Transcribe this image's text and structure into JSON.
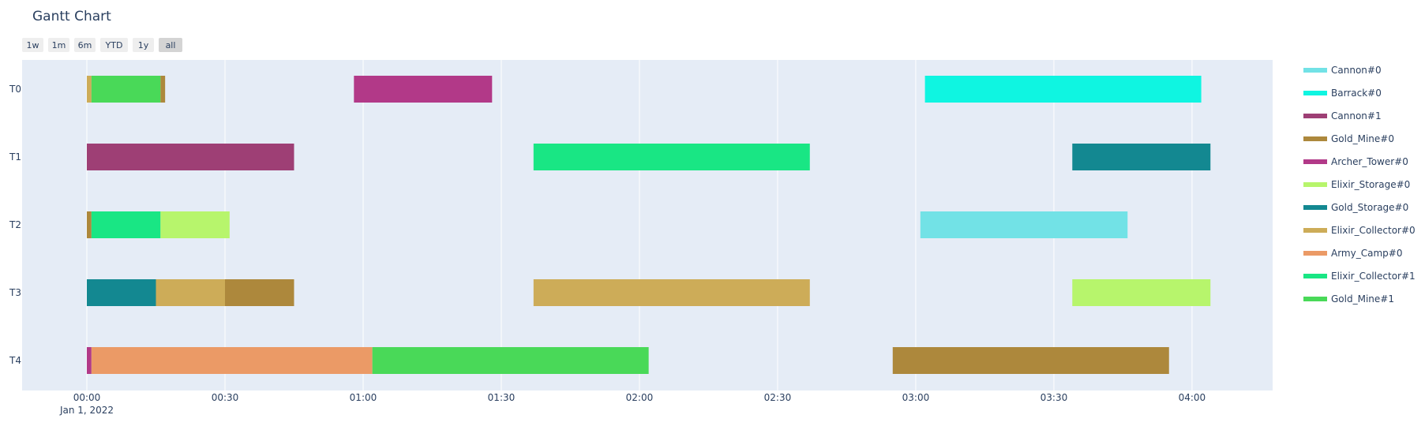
{
  "chart_data": {
    "type": "gantt",
    "title": "Gantt Chart",
    "x_axis": {
      "type": "date",
      "range": [
        "2022-01-01 00:00",
        "2022-01-01 04:18"
      ],
      "ticks": [
        {
          "value": "2022-01-01 00:00",
          "label": "00:00",
          "sublabel": "Jan 1, 2022"
        },
        {
          "value": "2022-01-01 00:30",
          "label": "00:30"
        },
        {
          "value": "2022-01-01 01:00",
          "label": "01:00"
        },
        {
          "value": "2022-01-01 01:30",
          "label": "01:30"
        },
        {
          "value": "2022-01-01 02:00",
          "label": "02:00"
        },
        {
          "value": "2022-01-01 02:30",
          "label": "02:30"
        },
        {
          "value": "2022-01-01 03:00",
          "label": "03:00"
        },
        {
          "value": "2022-01-01 03:30",
          "label": "03:30"
        },
        {
          "value": "2022-01-01 04:00",
          "label": "04:00"
        }
      ]
    },
    "y_axis": {
      "categories": [
        "T0",
        "T1",
        "T2",
        "T3",
        "T4"
      ]
    },
    "range_selector": {
      "buttons": [
        "1w",
        "1m",
        "6m",
        "YTD",
        "1y",
        "all"
      ],
      "active": "all"
    },
    "legend": {
      "position": "right"
    },
    "series": [
      {
        "name": "Cannon#0",
        "color": "#72E2E6"
      },
      {
        "name": "Barrack#0",
        "color": "#0FF5E1"
      },
      {
        "name": "Cannon#1",
        "color": "#9E3F75"
      },
      {
        "name": "Gold_Mine#0",
        "color": "#AD883C"
      },
      {
        "name": "Archer_Tower#0",
        "color": "#B23988"
      },
      {
        "name": "Elixir_Storage#0",
        "color": "#B7F56C"
      },
      {
        "name": "Gold_Storage#0",
        "color": "#138891"
      },
      {
        "name": "Elixir_Collector#0",
        "color": "#CDAC58"
      },
      {
        "name": "Army_Camp#0",
        "color": "#EB9A66"
      },
      {
        "name": "Elixir_Collector#1",
        "color": "#19E684"
      },
      {
        "name": "Gold_Mine#1",
        "color": "#49D958"
      }
    ],
    "tasks": [
      {
        "row": "T0",
        "series": "Elixir_Collector#0",
        "start": "2022-01-01 00:00",
        "end": "2022-01-01 00:01"
      },
      {
        "row": "T0",
        "series": "Gold_Mine#1",
        "start": "2022-01-01 00:01",
        "end": "2022-01-01 00:16"
      },
      {
        "row": "T0",
        "series": "Gold_Mine#0",
        "start": "2022-01-01 00:16",
        "end": "2022-01-01 00:17"
      },
      {
        "row": "T0",
        "series": "Archer_Tower#0",
        "start": "2022-01-01 00:58",
        "end": "2022-01-01 01:28"
      },
      {
        "row": "T0",
        "series": "Barrack#0",
        "start": "2022-01-01 03:02",
        "end": "2022-01-01 04:02"
      },
      {
        "row": "T1",
        "series": "Cannon#1",
        "start": "2022-01-01 00:00",
        "end": "2022-01-01 00:45"
      },
      {
        "row": "T1",
        "series": "Elixir_Collector#1",
        "start": "2022-01-01 01:37",
        "end": "2022-01-01 02:37"
      },
      {
        "row": "T1",
        "series": "Gold_Storage#0",
        "start": "2022-01-01 03:34",
        "end": "2022-01-01 04:04"
      },
      {
        "row": "T2",
        "series": "Gold_Mine#0",
        "start": "2022-01-01 00:00",
        "end": "2022-01-01 00:01"
      },
      {
        "row": "T2",
        "series": "Elixir_Collector#1",
        "start": "2022-01-01 00:01",
        "end": "2022-01-01 00:16"
      },
      {
        "row": "T2",
        "series": "Elixir_Storage#0",
        "start": "2022-01-01 00:16",
        "end": "2022-01-01 00:31"
      },
      {
        "row": "T2",
        "series": "Cannon#0",
        "start": "2022-01-01 03:01",
        "end": "2022-01-01 03:46"
      },
      {
        "row": "T3",
        "series": "Gold_Storage#0",
        "start": "2022-01-01 00:00",
        "end": "2022-01-01 00:15"
      },
      {
        "row": "T3",
        "series": "Elixir_Collector#0",
        "start": "2022-01-01 00:15",
        "end": "2022-01-01 00:30"
      },
      {
        "row": "T3",
        "series": "Gold_Mine#0",
        "start": "2022-01-01 00:30",
        "end": "2022-01-01 00:45"
      },
      {
        "row": "T3",
        "series": "Elixir_Collector#0",
        "start": "2022-01-01 01:37",
        "end": "2022-01-01 02:37"
      },
      {
        "row": "T3",
        "series": "Elixir_Storage#0",
        "start": "2022-01-01 03:34",
        "end": "2022-01-01 04:04"
      },
      {
        "row": "T4",
        "series": "Archer_Tower#0",
        "start": "2022-01-01 00:00",
        "end": "2022-01-01 00:01"
      },
      {
        "row": "T4",
        "series": "Army_Camp#0",
        "start": "2022-01-01 00:01",
        "end": "2022-01-01 01:02"
      },
      {
        "row": "T4",
        "series": "Gold_Mine#1",
        "start": "2022-01-01 01:02",
        "end": "2022-01-01 02:02"
      },
      {
        "row": "T4",
        "series": "Gold_Mine#0",
        "start": "2022-01-01 02:55",
        "end": "2022-01-01 03:55"
      }
    ]
  }
}
